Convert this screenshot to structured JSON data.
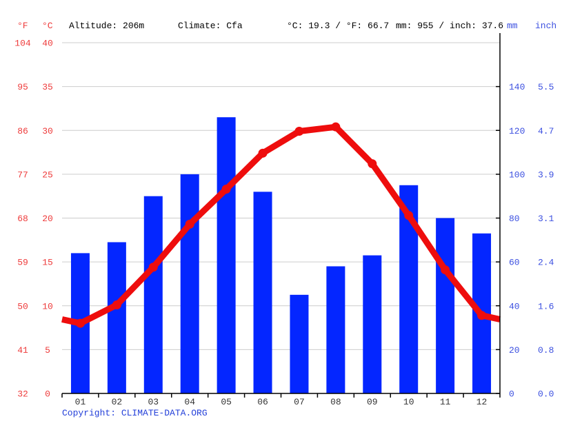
{
  "header": {
    "f_unit": "°F",
    "c_unit": "°C",
    "altitude": "Altitude: 206m",
    "climate": "Climate: Cfa",
    "temp_summary": "°C: 19.3 / °F: 66.7",
    "precip_summary": "mm: 955 / inch: 37.6",
    "mm_unit": "mm",
    "inch_unit": "inch"
  },
  "footer": {
    "copyright_prefix": "Copyright: ",
    "copyright_link": "CLIMATE-DATA.ORG"
  },
  "chart_data": {
    "type": "bar",
    "categories": [
      "01",
      "02",
      "03",
      "04",
      "05",
      "06",
      "07",
      "08",
      "09",
      "10",
      "11",
      "12"
    ],
    "series": [
      {
        "name": "precipitation_mm",
        "type": "bar",
        "values": [
          64,
          69,
          90,
          100,
          126,
          92,
          45,
          58,
          63,
          95,
          80,
          73
        ]
      },
      {
        "name": "temperature_c",
        "type": "line",
        "values": [
          8.0,
          10.1,
          14.4,
          19.3,
          23.3,
          27.4,
          29.9,
          30.4,
          26.2,
          20.3,
          14.1,
          8.9
        ]
      }
    ],
    "axes": {
      "left_f_ticks": [
        "104",
        "95",
        "86",
        "77",
        "68",
        "59",
        "50",
        "41",
        "32"
      ],
      "left_c_ticks": [
        "40",
        "35",
        "30",
        "25",
        "20",
        "15",
        "10",
        "5",
        "0"
      ],
      "right_mm_ticks": [
        "140",
        "120",
        "100",
        "80",
        "60",
        "40",
        "20",
        "0"
      ],
      "right_inch_ticks": [
        "5.5",
        "4.7",
        "3.9",
        "3.1",
        "2.4",
        "1.6",
        "0.8",
        "0.0"
      ],
      "c_range": [
        0,
        40
      ],
      "mm_range": [
        0,
        160
      ],
      "grid": true
    },
    "colors": {
      "bar": "#0426ff",
      "line": "#ee0d0d",
      "grid": "#cccccc",
      "axis": "#000000",
      "red_label": "#ee3b3b",
      "blue_label": "#3c50e0",
      "month_label": "#333333"
    }
  }
}
